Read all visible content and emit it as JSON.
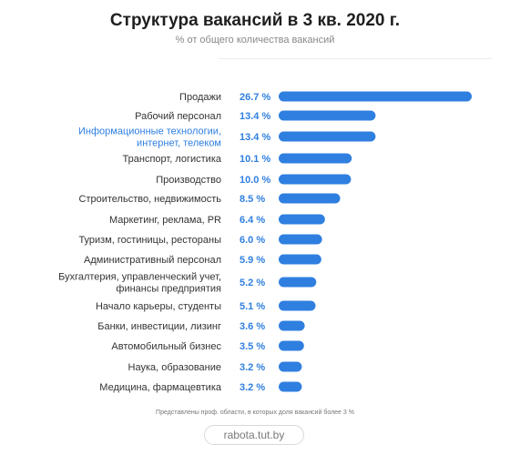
{
  "title": "Структура вакансий в 3 кв. 2020 г.",
  "subtitle": "% от общего количества вакансий",
  "note": "Представлены проф. области, в которых доля вакансий более 3 %",
  "source": "rabota.tut.by",
  "colors": {
    "bar": "#2f7fe0",
    "value_text": "#2f7fe0",
    "label_text": "#333333",
    "highlight_label": "#2f7fe0"
  },
  "chart_data": {
    "type": "bar",
    "orientation": "horizontal",
    "title": "Структура вакансий в 3 кв. 2020 г.",
    "subtitle": "% от общего количества вакансий",
    "xlim": [
      0,
      26.7
    ],
    "grid": false,
    "categories": [
      [
        "Продажи"
      ],
      [
        "Рабочий персонал"
      ],
      [
        "Информационные технологии,",
        "интернет, телеком"
      ],
      [
        "Транспорт, логистика"
      ],
      [
        "Производство"
      ],
      [
        "Строительство, недвижимость"
      ],
      [
        "Маркетинг, реклама, PR"
      ],
      [
        "Туризм, гостиницы, рестораны"
      ],
      [
        "Административный персонал"
      ],
      [
        "Бухгалтерия, управленческий учет,",
        "финансы предприятия"
      ],
      [
        "Начало карьеры, студенты"
      ],
      [
        "Банки, инвестиции, лизинг"
      ],
      [
        "Автомобильный бизнес"
      ],
      [
        "Наука, образование"
      ],
      [
        "Медицина, фармацевтика"
      ]
    ],
    "values": [
      26.7,
      13.4,
      13.4,
      10.1,
      10.0,
      8.5,
      6.4,
      6.0,
      5.9,
      5.2,
      5.1,
      3.6,
      3.5,
      3.2,
      3.2
    ],
    "value_labels": [
      "26.7 %",
      "13.4 %",
      "13.4 %",
      "10.1 %",
      "10.0 %",
      "8.5 %",
      "6.4 %",
      "6.0 %",
      "5.9 %",
      "5.2 %",
      "5.1 %",
      "3.6 %",
      "3.5 %",
      "3.2 %",
      "3.2 %"
    ],
    "highlighted_index": 2
  }
}
